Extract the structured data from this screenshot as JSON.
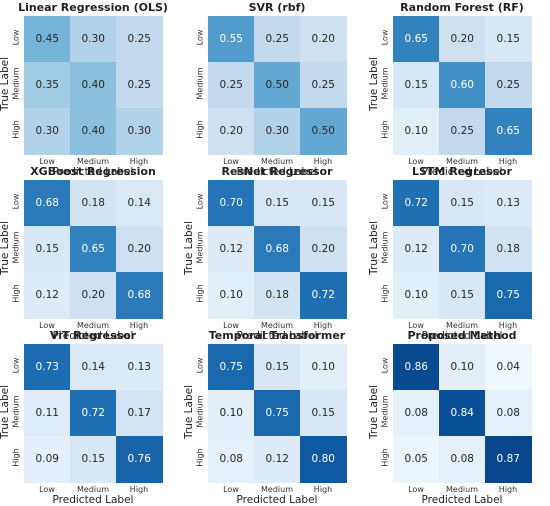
{
  "chart_data": [
    {
      "type": "heatmap",
      "title": "Linear Regression (OLS)",
      "xlabel": "Predicted Label",
      "ylabel": "True Label",
      "x_categories": [
        "Low",
        "Medium",
        "High"
      ],
      "y_categories": [
        "Low",
        "Medium",
        "High"
      ],
      "values": [
        [
          0.45,
          0.3,
          0.25
        ],
        [
          0.35,
          0.4,
          0.25
        ],
        [
          0.3,
          0.4,
          0.3
        ]
      ],
      "value_labels": [
        [
          "0.45",
          "0.30",
          "0.25"
        ],
        [
          "0.35",
          "0.40",
          "0.25"
        ],
        [
          "0.30",
          "0.40",
          "0.30"
        ]
      ]
    },
    {
      "type": "heatmap",
      "title": "SVR (rbf)",
      "xlabel": "Predicted Label",
      "ylabel": "",
      "x_categories": [
        "Low",
        "Medium",
        "High"
      ],
      "y_categories": [
        "Low",
        "Medium",
        "High"
      ],
      "values": [
        [
          0.55,
          0.25,
          0.2
        ],
        [
          0.25,
          0.5,
          0.25
        ],
        [
          0.2,
          0.3,
          0.5
        ]
      ],
      "value_labels": [
        [
          "0.55",
          "0.25",
          "0.20"
        ],
        [
          "0.25",
          "0.50",
          "0.25"
        ],
        [
          "0.20",
          "0.30",
          "0.50"
        ]
      ]
    },
    {
      "type": "heatmap",
      "title": "Random Forest (RF)",
      "xlabel": "Predicted Label",
      "ylabel": "True Label",
      "x_categories": [
        "Low",
        "Medium",
        "High"
      ],
      "y_categories": [
        "Low",
        "Medium",
        "High"
      ],
      "values": [
        [
          0.65,
          0.2,
          0.15
        ],
        [
          0.15,
          0.6,
          0.25
        ],
        [
          0.1,
          0.25,
          0.65
        ]
      ],
      "value_labels": [
        [
          "0.65",
          "0.20",
          "0.15"
        ],
        [
          "0.15",
          "0.60",
          "0.25"
        ],
        [
          "0.10",
          "0.25",
          "0.65"
        ]
      ]
    },
    {
      "type": "heatmap",
      "title": "XGBoost Regression",
      "xlabel": "Predicted Label",
      "ylabel": "True Label",
      "x_categories": [
        "Low",
        "Medium",
        "High"
      ],
      "y_categories": [
        "Low",
        "Medium",
        "High"
      ],
      "values": [
        [
          0.68,
          0.18,
          0.14
        ],
        [
          0.15,
          0.65,
          0.2
        ],
        [
          0.12,
          0.2,
          0.68
        ]
      ],
      "value_labels": [
        [
          "0.68",
          "0.18",
          "0.14"
        ],
        [
          "0.15",
          "0.65",
          "0.20"
        ],
        [
          "0.12",
          "0.20",
          "0.68"
        ]
      ]
    },
    {
      "type": "heatmap",
      "title": "ResNet Regressor",
      "xlabel": "Predicted Label",
      "ylabel": "True Label",
      "x_categories": [
        "Low",
        "Medium",
        "High"
      ],
      "y_categories": [
        "Low",
        "Medium",
        "High"
      ],
      "values": [
        [
          0.7,
          0.15,
          0.15
        ],
        [
          0.12,
          0.68,
          0.2
        ],
        [
          0.1,
          0.18,
          0.72
        ]
      ],
      "value_labels": [
        [
          "0.70",
          "0.15",
          "0.15"
        ],
        [
          "0.12",
          "0.68",
          "0.20"
        ],
        [
          "0.10",
          "0.18",
          "0.72"
        ]
      ]
    },
    {
      "type": "heatmap",
      "title": "LSTM Regressor",
      "xlabel": "Predicted Label",
      "ylabel": "True Label",
      "x_categories": [
        "Low",
        "Medium",
        "High"
      ],
      "y_categories": [
        "Low",
        "Medium",
        "High"
      ],
      "values": [
        [
          0.72,
          0.15,
          0.13
        ],
        [
          0.12,
          0.7,
          0.18
        ],
        [
          0.1,
          0.15,
          0.75
        ]
      ],
      "value_labels": [
        [
          "0.72",
          "0.15",
          "0.13"
        ],
        [
          "0.12",
          "0.70",
          "0.18"
        ],
        [
          "0.10",
          "0.15",
          "0.75"
        ]
      ]
    },
    {
      "type": "heatmap",
      "title": "ViT Regressor",
      "xlabel": "Predicted Label",
      "ylabel": "True Label",
      "x_categories": [
        "Low",
        "Medium",
        "High"
      ],
      "y_categories": [
        "Low",
        "Medium",
        "High"
      ],
      "values": [
        [
          0.73,
          0.14,
          0.13
        ],
        [
          0.11,
          0.72,
          0.17
        ],
        [
          0.09,
          0.15,
          0.76
        ]
      ],
      "value_labels": [
        [
          "0.73",
          "0.14",
          "0.13"
        ],
        [
          "0.11",
          "0.72",
          "0.17"
        ],
        [
          "0.09",
          "0.15",
          "0.76"
        ]
      ]
    },
    {
      "type": "heatmap",
      "title": "Temporal Transformer",
      "xlabel": "Predicted Label",
      "ylabel": "True Label",
      "x_categories": [
        "Low",
        "Medium",
        "High"
      ],
      "y_categories": [
        "Low",
        "Medium",
        "High"
      ],
      "values": [
        [
          0.75,
          0.15,
          0.1
        ],
        [
          0.1,
          0.75,
          0.15
        ],
        [
          0.08,
          0.12,
          0.8
        ]
      ],
      "value_labels": [
        [
          "0.75",
          "0.15",
          "0.10"
        ],
        [
          "0.10",
          "0.75",
          "0.15"
        ],
        [
          "0.08",
          "0.12",
          "0.80"
        ]
      ]
    },
    {
      "type": "heatmap",
      "title": "Proposed Method",
      "xlabel": "Predicted Label",
      "ylabel": "True Label",
      "x_categories": [
        "Low",
        "Medium",
        "High"
      ],
      "y_categories": [
        "Low",
        "Medium",
        "High"
      ],
      "values": [
        [
          0.86,
          0.1,
          0.04
        ],
        [
          0.08,
          0.84,
          0.08
        ],
        [
          0.05,
          0.08,
          0.87
        ]
      ],
      "value_labels": [
        [
          "0.86",
          "0.10",
          "0.04"
        ],
        [
          "0.08",
          "0.84",
          "0.08"
        ],
        [
          "0.05",
          "0.08",
          "0.87"
        ]
      ]
    }
  ],
  "colormap": {
    "low": "#f7fbff",
    "high": "#08306b",
    "light_text": "#ffffff",
    "dark_text": "#262626"
  }
}
